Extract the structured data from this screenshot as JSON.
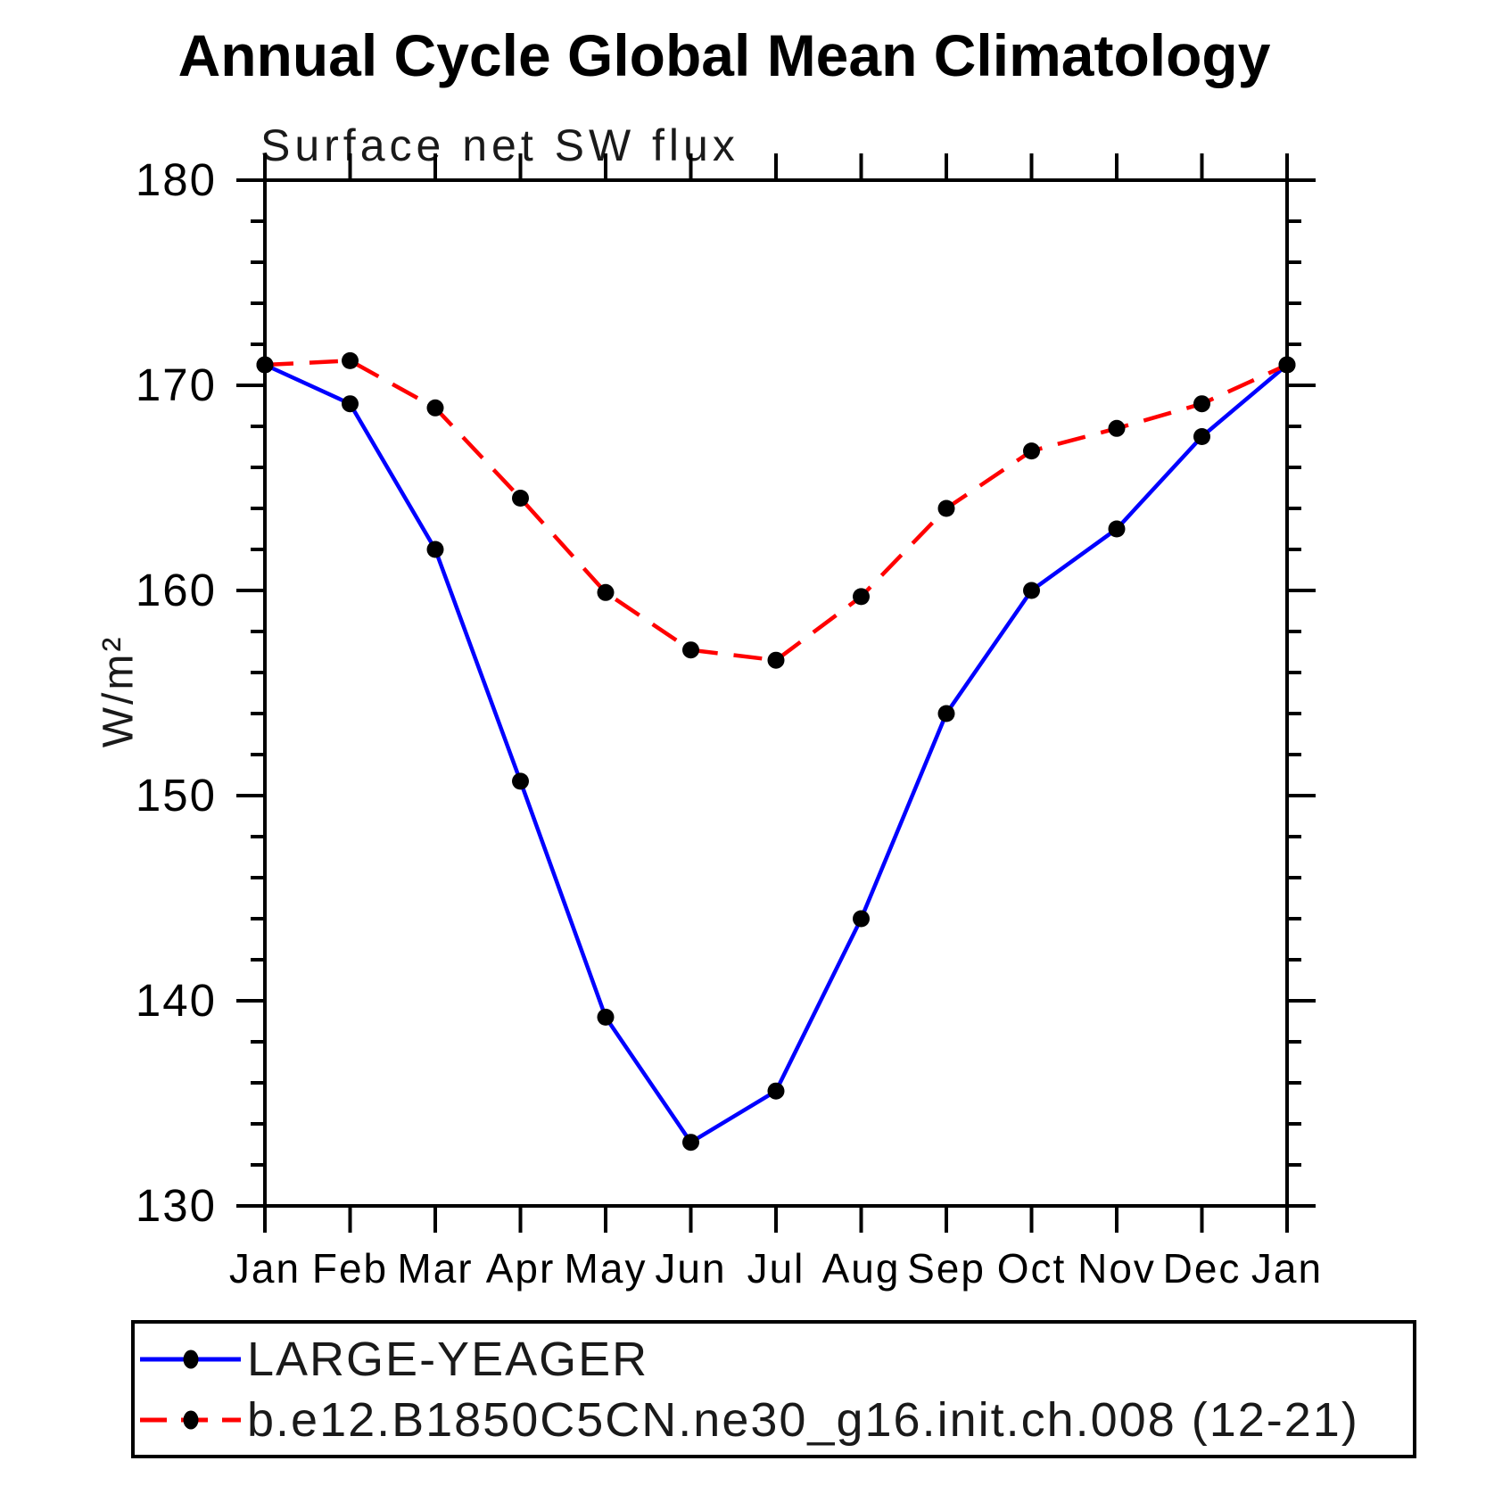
{
  "chart_data": {
    "type": "line",
    "title": "Annual Cycle Global Mean Climatology",
    "subtitle": "Surface net SW flux",
    "ylabel": "W/m²",
    "xlabel": "",
    "x_tick_labels": [
      "Jan",
      "Feb",
      "Mar",
      "Apr",
      "May",
      "Jun",
      "Jul",
      "Aug",
      "Sep",
      "Oct",
      "Nov",
      "Dec",
      "Jan"
    ],
    "ylim": [
      130,
      180
    ],
    "y_major_ticks": [
      130,
      140,
      150,
      160,
      170,
      180
    ],
    "y_minor_step": 2,
    "grid": "off",
    "legend_position": "bottom",
    "frame_color": "#000000",
    "marker_color": "#000000",
    "series": [
      {
        "name": "LARGE-YEAGER",
        "color": "#0000ff",
        "style": "solid",
        "marker": "filled-black-circle",
        "values": [
          171.0,
          169.1,
          162.0,
          150.7,
          139.2,
          133.1,
          135.6,
          144.0,
          154.0,
          160.0,
          163.0,
          167.5,
          171.0
        ]
      },
      {
        "name": "b.e12.B1850C5CN.ne30_g16.init.ch.008 (12-21)",
        "color": "#ff0000",
        "style": "dashed",
        "marker": "filled-black-circle",
        "values": [
          171.0,
          171.2,
          168.9,
          164.5,
          159.9,
          157.1,
          156.6,
          159.7,
          164.0,
          166.8,
          167.9,
          169.1,
          171.0
        ]
      }
    ]
  }
}
